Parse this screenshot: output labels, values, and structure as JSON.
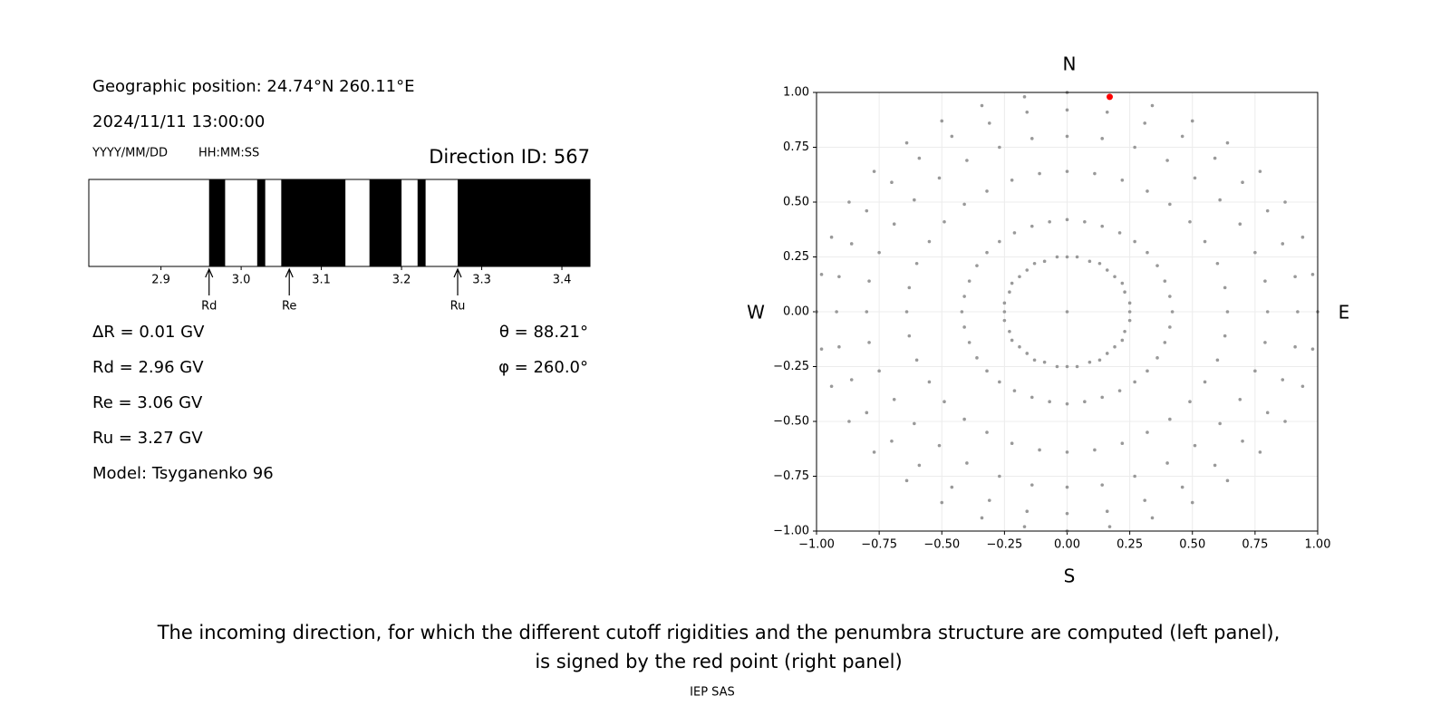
{
  "header": {
    "position": "Geographic position: 24.74°N 260.11°E",
    "datetime": "2024/11/11 13:00:00",
    "date_format": "YYYY/MM/DD",
    "time_format": "HH:MM:SS",
    "direction": "Direction ID: 567"
  },
  "chart_data": [
    {
      "type": "penumbra",
      "color": "#000000",
      "bands": [
        [
          2.96,
          2.98
        ],
        [
          3.02,
          3.03
        ],
        [
          3.05,
          3.13
        ],
        [
          3.16,
          3.2
        ],
        [
          3.22,
          3.23
        ],
        [
          3.27,
          3.435
        ]
      ],
      "xlim": [
        2.81,
        3.435
      ],
      "xticks": [
        2.9,
        {
          "value": 3,
          "label": "3.0"
        },
        3.1,
        3.2,
        3.3,
        3.4
      ],
      "annotations": [
        {
          "label": "Rd",
          "x": 2.96
        },
        {
          "label": "Re",
          "x": 3.06
        },
        {
          "label": "Ru",
          "x": 3.27
        }
      ]
    },
    {
      "type": "scatter",
      "color": "#999999",
      "grid": true,
      "x": [
        0.42,
        0.64,
        0.8,
        0.92,
        1,
        0.41,
        0.63,
        0.79,
        0.91,
        0.98,
        0.39,
        0.6,
        0.75,
        0.86,
        0.94,
        0.36,
        0.55,
        0.69,
        0.8,
        0.87,
        0.32,
        0.49,
        0.61,
        0.7,
        0.77,
        0.27,
        0.41,
        0.51,
        0.59,
        0.64,
        0.21,
        0.32,
        0.4,
        0.46,
        0.5,
        0.14,
        0.22,
        0.27,
        0.31,
        0.34,
        0.07,
        0.11,
        0.14,
        0.16,
        0.17,
        0,
        0,
        0,
        0,
        0,
        -0.07,
        -0.11,
        -0.14,
        -0.16,
        -0.17,
        -0.14,
        -0.22,
        -0.27,
        -0.31,
        -0.34,
        -0.21,
        -0.32,
        -0.4,
        -0.46,
        -0.5,
        -0.27,
        -0.41,
        -0.51,
        -0.59,
        -0.64,
        -0.32,
        -0.49,
        -0.61,
        -0.7,
        -0.77,
        -0.36,
        -0.55,
        -0.69,
        -0.8,
        -0.87,
        -0.39,
        -0.6,
        -0.75,
        -0.86,
        -0.94,
        -0.41,
        -0.63,
        -0.79,
        -0.91,
        -0.98,
        -0.42,
        -0.64,
        -0.8,
        -0.92,
        -1,
        -0.41,
        -0.63,
        -0.79,
        -0.91,
        -0.98,
        -0.39,
        -0.6,
        -0.75,
        -0.86,
        -0.94,
        -0.36,
        -0.55,
        -0.69,
        -0.8,
        -0.87,
        -0.32,
        -0.49,
        -0.61,
        -0.7,
        -0.77,
        -0.27,
        -0.41,
        -0.51,
        -0.59,
        -0.64,
        -0.21,
        -0.32,
        -0.4,
        -0.46,
        -0.5,
        -0.14,
        -0.22,
        -0.27,
        -0.31,
        -0.34,
        -0.07,
        -0.11,
        -0.14,
        -0.16,
        -0.17,
        0,
        0,
        0,
        0,
        0,
        0.07,
        0.11,
        0.14,
        0.16,
        0.17,
        0.14,
        0.22,
        0.27,
        0.31,
        0.34,
        0.21,
        0.32,
        0.4,
        0.46,
        0.5,
        0.27,
        0.41,
        0.51,
        0.59,
        0.64,
        0.32,
        0.49,
        0.61,
        0.7,
        0.77,
        0.36,
        0.55,
        0.69,
        0.8,
        0.87,
        0.39,
        0.6,
        0.75,
        0.86,
        0.94,
        0.41,
        0.63,
        0.79,
        0.91,
        0.98,
        0.25,
        0.25,
        0.23,
        0.22,
        0.19,
        0.16,
        0.13,
        0.09,
        0.04,
        0,
        -0.04,
        -0.09,
        -0.13,
        -0.16,
        -0.19,
        -0.22,
        -0.23,
        -0.25,
        -0.25,
        -0.25,
        -0.23,
        -0.22,
        -0.19,
        -0.16,
        -0.13,
        -0.09,
        -0.04,
        0,
        0.04,
        0.09,
        0.13,
        0.16,
        0.19,
        0.22,
        0.23,
        0.25,
        0
      ],
      "y": [
        0,
        0,
        0,
        0,
        0,
        0.07,
        0.11,
        0.14,
        0.16,
        0.17,
        0.14,
        0.22,
        0.27,
        0.31,
        0.34,
        0.21,
        0.32,
        0.4,
        0.46,
        0.5,
        0.27,
        0.41,
        0.51,
        0.59,
        0.64,
        0.32,
        0.49,
        0.61,
        0.7,
        0.77,
        0.36,
        0.55,
        0.69,
        0.8,
        0.87,
        0.39,
        0.6,
        0.75,
        0.86,
        0.94,
        0.41,
        0.63,
        0.79,
        0.91,
        0.98,
        0.42,
        0.64,
        0.8,
        0.92,
        1,
        0.41,
        0.63,
        0.79,
        0.91,
        0.98,
        0.39,
        0.6,
        0.75,
        0.86,
        0.94,
        0.36,
        0.55,
        0.69,
        0.8,
        0.87,
        0.32,
        0.49,
        0.61,
        0.7,
        0.77,
        0.27,
        0.41,
        0.51,
        0.59,
        0.64,
        0.21,
        0.32,
        0.4,
        0.46,
        0.5,
        0.14,
        0.22,
        0.27,
        0.31,
        0.34,
        0.07,
        0.11,
        0.14,
        0.16,
        0.17,
        0,
        0,
        0,
        0,
        0,
        -0.07,
        -0.11,
        -0.14,
        -0.16,
        -0.17,
        -0.14,
        -0.22,
        -0.27,
        -0.31,
        -0.34,
        -0.21,
        -0.32,
        -0.4,
        -0.46,
        -0.5,
        -0.27,
        -0.41,
        -0.51,
        -0.59,
        -0.64,
        -0.32,
        -0.49,
        -0.61,
        -0.7,
        -0.77,
        -0.36,
        -0.55,
        -0.69,
        -0.8,
        -0.87,
        -0.39,
        -0.6,
        -0.75,
        -0.86,
        -0.94,
        -0.41,
        -0.63,
        -0.79,
        -0.91,
        -0.98,
        -0.42,
        -0.64,
        -0.8,
        -0.92,
        -1,
        -0.41,
        -0.63,
        -0.79,
        -0.91,
        -0.98,
        -0.39,
        -0.6,
        -0.75,
        -0.86,
        -0.94,
        -0.36,
        -0.55,
        -0.69,
        -0.8,
        -0.87,
        -0.32,
        -0.49,
        -0.61,
        -0.7,
        -0.77,
        -0.27,
        -0.41,
        -0.51,
        -0.59,
        -0.64,
        -0.21,
        -0.32,
        -0.4,
        -0.46,
        -0.5,
        -0.14,
        -0.22,
        -0.27,
        -0.31,
        -0.34,
        -0.07,
        -0.11,
        -0.14,
        -0.16,
        -0.17,
        0,
        0.04,
        0.09,
        0.13,
        0.16,
        0.19,
        0.22,
        0.23,
        0.25,
        0.25,
        0.25,
        0.23,
        0.22,
        0.19,
        0.16,
        0.13,
        0.09,
        0.04,
        0,
        -0.04,
        -0.09,
        -0.13,
        -0.16,
        -0.19,
        -0.22,
        -0.23,
        -0.25,
        -0.25,
        -0.25,
        -0.23,
        -0.22,
        -0.19,
        -0.16,
        -0.13,
        -0.09,
        -0.04,
        0
      ],
      "highlight": {
        "x": [
          0.17
        ],
        "y": [
          0.98
        ],
        "color": "#ff0000"
      },
      "xlim": [
        -1,
        1
      ],
      "ylim": [
        -1,
        1
      ],
      "xticks": [
        {
          "value": -1,
          "label": "−1.00"
        },
        {
          "value": -0.75,
          "label": "−0.75"
        },
        {
          "value": -0.5,
          "label": "−0.50"
        },
        {
          "value": -0.25,
          "label": "−0.25"
        },
        {
          "value": 0,
          "label": "0.00"
        },
        {
          "value": 0.25,
          "label": "0.25"
        },
        {
          "value": 0.5,
          "label": "0.50"
        },
        {
          "value": 0.75,
          "label": "0.75"
        },
        {
          "value": 1,
          "label": "1.00"
        }
      ],
      "yticks": [
        {
          "value": -1,
          "label": "−1.00"
        },
        {
          "value": -0.75,
          "label": "−0.75"
        },
        {
          "value": -0.5,
          "label": "−0.50"
        },
        {
          "value": -0.25,
          "label": "−0.25"
        },
        {
          "value": 0,
          "label": "0.00"
        },
        {
          "value": 0.25,
          "label": "0.25"
        },
        {
          "value": 0.5,
          "label": "0.50"
        },
        {
          "value": 0.75,
          "label": "0.75"
        },
        {
          "value": 1,
          "label": "1.00"
        }
      ],
      "compass": {
        "north": "N",
        "south": "S",
        "west": "W",
        "east": "E"
      }
    }
  ],
  "results": {
    "left": [
      "ΔR = 0.01 GV",
      "Rd = 2.96 GV",
      "Re = 3.06 GV",
      "Ru = 3.27 GV",
      "Model: Tsyganenko 96"
    ],
    "right": [
      "θ = 88.21°",
      "φ = 260.0°"
    ]
  },
  "caption": [
    "The incoming direction, for which the different cutoff rigidities and the penumbra structure are computed (left panel),",
    "is signed by the red point (right panel)"
  ],
  "footer": "IEP SAS"
}
